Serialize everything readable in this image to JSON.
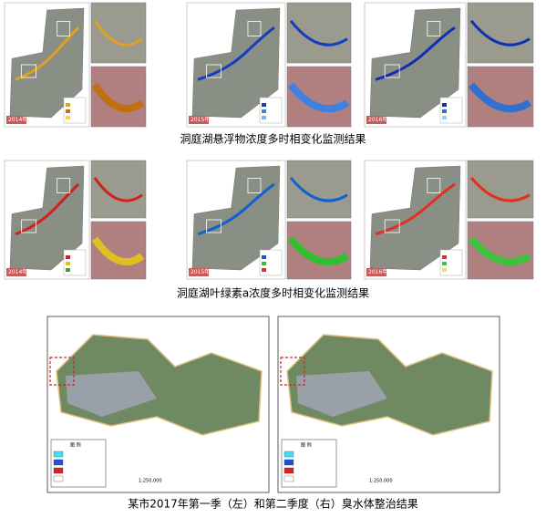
{
  "rows": [
    {
      "panels": [
        {
          "year": "2014年"
        },
        {
          "year": "2015年"
        },
        {
          "year": "2016年"
        }
      ],
      "caption": "洞庭湖悬浮物浓度多时相变化监测结果"
    },
    {
      "panels": [
        {
          "year": "2014年"
        },
        {
          "year": "2015年"
        },
        {
          "year": "2016年"
        }
      ],
      "caption": "洞庭湖叶绿素a浓度多时相变化监测结果"
    }
  ],
  "bottom": {
    "maps": [
      {
        "legend_title": "图 例",
        "scale": "1:250,000"
      },
      {
        "legend_title": "图 例",
        "scale": "1:250,000"
      }
    ],
    "caption": "某市2017年第一季（左）和第二季度（右）臭水体整治结果"
  }
}
